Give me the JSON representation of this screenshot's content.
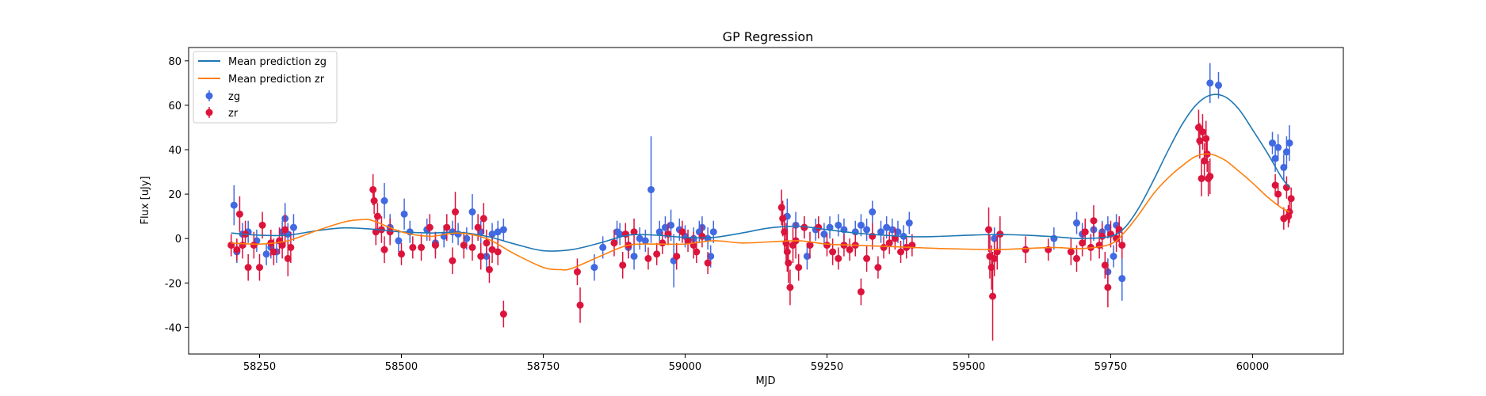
{
  "chart_data": {
    "type": "scatter",
    "title": "GP Regression",
    "xlabel": "MJD",
    "ylabel": "Flux [uJy]",
    "xlim": [
      58125,
      60160
    ],
    "ylim": [
      -52,
      86
    ],
    "xticks": [
      58250,
      58500,
      58750,
      59000,
      59250,
      59500,
      59750,
      60000
    ],
    "yticks": [
      -40,
      -20,
      0,
      20,
      40,
      60,
      80
    ],
    "legend_position": "upper-left",
    "colors": {
      "zg_points": "#4169e1",
      "zr_points": "#dc143c",
      "zg_line": "#1f77b4",
      "zr_line": "#ff7f0e"
    },
    "lines": [
      {
        "name": "Mean prediction zg",
        "x": [
          58200,
          58250,
          58300,
          58350,
          58400,
          58450,
          58500,
          58550,
          58600,
          58650,
          58700,
          58750,
          58800,
          58850,
          58900,
          58950,
          59000,
          59050,
          59100,
          59150,
          59200,
          59250,
          59300,
          59350,
          59400,
          59450,
          59500,
          59550,
          59600,
          59650,
          59700,
          59750,
          59775,
          59800,
          59825,
          59850,
          59875,
          59900,
          59925,
          59950,
          59975,
          60000,
          60025,
          60050,
          60065
        ],
        "y": [
          2.5,
          1.5,
          1.5,
          3.5,
          4.8,
          4.2,
          3.0,
          2.5,
          2.8,
          1.0,
          -2.5,
          -5.5,
          -5.0,
          -2.0,
          1.5,
          1.5,
          0.5,
          0.5,
          2.5,
          4.8,
          5.5,
          4.0,
          2.5,
          1.5,
          0.8,
          1.0,
          1.5,
          1.8,
          1.5,
          0.8,
          0.0,
          1.0,
          5.0,
          14.0,
          26.0,
          39.0,
          51.0,
          60.0,
          64.5,
          64.0,
          58.5,
          49.0,
          39.0,
          28.0,
          23.0
        ]
      },
      {
        "name": "Mean prediction zr",
        "x": [
          58200,
          58250,
          58300,
          58350,
          58400,
          58430,
          58450,
          58500,
          58550,
          58600,
          58650,
          58700,
          58750,
          58780,
          58800,
          58850,
          58900,
          58950,
          59000,
          59050,
          59100,
          59150,
          59200,
          59250,
          59300,
          59350,
          59400,
          59450,
          59500,
          59550,
          59600,
          59650,
          59700,
          59750,
          59775,
          59800,
          59825,
          59850,
          59875,
          59900,
          59925,
          59950,
          59975,
          60000,
          60025,
          60050,
          60065
        ],
        "y": [
          -2.0,
          -2.5,
          -1.0,
          3.5,
          7.5,
          8.5,
          8.0,
          3.0,
          1.0,
          2.5,
          0.0,
          -7.0,
          -13.0,
          -14.0,
          -13.5,
          -8.0,
          -3.0,
          -2.5,
          -2.5,
          -1.0,
          -2.0,
          -1.5,
          -1.0,
          -2.5,
          -3.0,
          -3.5,
          -4.0,
          -4.5,
          -4.8,
          -5.0,
          -4.5,
          -4.0,
          -4.5,
          -2.5,
          3.0,
          11.0,
          20.0,
          27.0,
          32.5,
          37.0,
          38.0,
          35.5,
          30.5,
          25.0,
          19.0,
          14.0,
          12.0
        ]
      }
    ],
    "series": [
      {
        "name": "zg",
        "points": [
          [
            58205,
            15,
            9
          ],
          [
            58210,
            -6,
            5
          ],
          [
            58220,
            2,
            5
          ],
          [
            58230,
            3,
            5
          ],
          [
            58245,
            -1,
            5
          ],
          [
            58262,
            -7,
            5
          ],
          [
            58270,
            -4,
            5
          ],
          [
            58280,
            -6,
            5
          ],
          [
            58290,
            3,
            5
          ],
          [
            58295,
            9,
            7
          ],
          [
            58300,
            2,
            5
          ],
          [
            58310,
            5,
            6
          ],
          [
            58470,
            17,
            8
          ],
          [
            58480,
            5,
            6
          ],
          [
            58495,
            -1,
            5
          ],
          [
            58505,
            11,
            7
          ],
          [
            58515,
            3,
            5
          ],
          [
            58545,
            4,
            5
          ],
          [
            58560,
            -2,
            5
          ],
          [
            58575,
            1,
            5
          ],
          [
            58590,
            3,
            5
          ],
          [
            58600,
            2,
            5
          ],
          [
            58615,
            0,
            5
          ],
          [
            58625,
            12,
            8
          ],
          [
            58640,
            3,
            5
          ],
          [
            58650,
            -8,
            6
          ],
          [
            58660,
            2,
            5
          ],
          [
            58670,
            3,
            5
          ],
          [
            58680,
            4,
            5
          ],
          [
            58840,
            -13,
            6
          ],
          [
            58855,
            -4,
            5
          ],
          [
            58880,
            3,
            5
          ],
          [
            58885,
            2,
            5
          ],
          [
            58900,
            -4,
            5
          ],
          [
            58910,
            -8,
            6
          ],
          [
            58920,
            0,
            5
          ],
          [
            58930,
            -1,
            5
          ],
          [
            58940,
            22,
            24
          ],
          [
            58955,
            3,
            5
          ],
          [
            58965,
            5,
            5
          ],
          [
            58975,
            6,
            7
          ],
          [
            58980,
            -10,
            12
          ],
          [
            58990,
            4,
            5
          ],
          [
            59000,
            1,
            5
          ],
          [
            59015,
            0,
            5
          ],
          [
            59025,
            3,
            5
          ],
          [
            59030,
            5,
            5
          ],
          [
            59040,
            0,
            5
          ],
          [
            59045,
            -8,
            5
          ],
          [
            59050,
            3,
            5
          ],
          [
            59180,
            10,
            8
          ],
          [
            59195,
            6,
            6
          ],
          [
            59210,
            5,
            5
          ],
          [
            59215,
            -8,
            6
          ],
          [
            59230,
            4,
            5
          ],
          [
            59245,
            2,
            5
          ],
          [
            59255,
            5,
            5
          ],
          [
            59270,
            6,
            5
          ],
          [
            59280,
            4,
            5
          ],
          [
            59300,
            3,
            5
          ],
          [
            59310,
            6,
            5
          ],
          [
            59320,
            4,
            5
          ],
          [
            59330,
            12,
            5
          ],
          [
            59345,
            3,
            5
          ],
          [
            59355,
            5,
            5
          ],
          [
            59365,
            4,
            5
          ],
          [
            59375,
            3,
            5
          ],
          [
            59385,
            1,
            5
          ],
          [
            59395,
            7,
            5
          ],
          [
            59545,
            0,
            5
          ],
          [
            59650,
            0,
            5
          ],
          [
            59690,
            7,
            5
          ],
          [
            59700,
            2,
            5
          ],
          [
            59720,
            4,
            5
          ],
          [
            59735,
            3,
            5
          ],
          [
            59745,
            5,
            5
          ],
          [
            59755,
            -8,
            5
          ],
          [
            59760,
            6,
            5
          ],
          [
            59770,
            -18,
            10
          ],
          [
            59745,
            -15,
            6
          ],
          [
            59925,
            70,
            9
          ],
          [
            59940,
            69,
            6
          ],
          [
            60035,
            43,
            5
          ],
          [
            60040,
            36,
            6
          ],
          [
            60045,
            41,
            6
          ],
          [
            60055,
            32,
            6
          ],
          [
            60060,
            39,
            7
          ],
          [
            60065,
            43,
            8
          ]
        ]
      },
      {
        "name": "zr",
        "points": [
          [
            58200,
            -3,
            5
          ],
          [
            58210,
            -5,
            5
          ],
          [
            58215,
            11,
            8
          ],
          [
            58220,
            -3,
            6
          ],
          [
            58225,
            2,
            6
          ],
          [
            58230,
            -13,
            6
          ],
          [
            58240,
            -3,
            6
          ],
          [
            58250,
            -13,
            6
          ],
          [
            58255,
            6,
            6
          ],
          [
            58270,
            -2,
            6
          ],
          [
            58275,
            -6,
            6
          ],
          [
            58285,
            -1,
            6
          ],
          [
            58290,
            -3,
            6
          ],
          [
            58295,
            4,
            7
          ],
          [
            58300,
            -9,
            8
          ],
          [
            58305,
            -4,
            7
          ],
          [
            58450,
            22,
            7
          ],
          [
            58452,
            17,
            6
          ],
          [
            58455,
            3,
            6
          ],
          [
            58458,
            10,
            6
          ],
          [
            58465,
            4,
            6
          ],
          [
            58470,
            -5,
            6
          ],
          [
            58480,
            3,
            6
          ],
          [
            58500,
            -7,
            5
          ],
          [
            58520,
            -4,
            5
          ],
          [
            58535,
            -4,
            6
          ],
          [
            58550,
            5,
            6
          ],
          [
            58560,
            -3,
            6
          ],
          [
            58580,
            5,
            6
          ],
          [
            58590,
            -10,
            6
          ],
          [
            58595,
            12,
            9
          ],
          [
            58610,
            -3,
            6
          ],
          [
            58625,
            -4,
            6
          ],
          [
            58635,
            5,
            6
          ],
          [
            58645,
            9,
            7
          ],
          [
            58650,
            -2,
            6
          ],
          [
            58655,
            -14,
            6
          ],
          [
            58660,
            -5,
            6
          ],
          [
            58670,
            -6,
            6
          ],
          [
            58680,
            -34,
            6
          ],
          [
            58640,
            -8,
            6
          ],
          [
            58810,
            -15,
            6
          ],
          [
            58815,
            -30,
            8
          ],
          [
            58875,
            -2,
            6
          ],
          [
            58890,
            -12,
            6
          ],
          [
            58895,
            2,
            5
          ],
          [
            58900,
            -3,
            6
          ],
          [
            58910,
            3,
            6
          ],
          [
            58935,
            -9,
            5
          ],
          [
            58950,
            -7,
            5
          ],
          [
            58960,
            -2,
            5
          ],
          [
            58970,
            2,
            5
          ],
          [
            58985,
            -8,
            6
          ],
          [
            58995,
            3,
            5
          ],
          [
            59005,
            -1,
            5
          ],
          [
            59015,
            -3,
            6
          ],
          [
            59020,
            -6,
            5
          ],
          [
            59030,
            1,
            5
          ],
          [
            59040,
            -11,
            5
          ],
          [
            59170,
            14,
            8
          ],
          [
            59172,
            9,
            8
          ],
          [
            59175,
            3,
            8
          ],
          [
            59178,
            -2,
            9
          ],
          [
            59180,
            -6,
            9
          ],
          [
            59182,
            -11,
            9
          ],
          [
            59185,
            -22,
            8
          ],
          [
            59190,
            -3,
            8
          ],
          [
            59195,
            -1,
            8
          ],
          [
            59200,
            -13,
            6
          ],
          [
            59210,
            5,
            5
          ],
          [
            59220,
            -3,
            6
          ],
          [
            59235,
            5,
            5
          ],
          [
            59250,
            -3,
            5
          ],
          [
            59260,
            -6,
            6
          ],
          [
            59270,
            -9,
            5
          ],
          [
            59280,
            -3,
            5
          ],
          [
            59290,
            -5,
            5
          ],
          [
            59300,
            -3,
            5
          ],
          [
            59310,
            -24,
            6
          ],
          [
            59320,
            -9,
            6
          ],
          [
            59330,
            1,
            6
          ],
          [
            59340,
            -13,
            5
          ],
          [
            59350,
            -4,
            5
          ],
          [
            59360,
            -2,
            5
          ],
          [
            59370,
            0,
            5
          ],
          [
            59380,
            -6,
            5
          ],
          [
            59390,
            -4,
            5
          ],
          [
            59400,
            -3,
            5
          ],
          [
            59535,
            4,
            10
          ],
          [
            59537,
            -8,
            10
          ],
          [
            59540,
            -13,
            10
          ],
          [
            59542,
            -26,
            20
          ],
          [
            59545,
            -9,
            8
          ],
          [
            59550,
            -6,
            8
          ],
          [
            59555,
            2,
            8
          ],
          [
            59600,
            -5,
            6
          ],
          [
            59640,
            -5,
            5
          ],
          [
            59680,
            -6,
            6
          ],
          [
            59690,
            -9,
            6
          ],
          [
            59700,
            -2,
            6
          ],
          [
            59705,
            3,
            6
          ],
          [
            59715,
            -4,
            6
          ],
          [
            59720,
            8,
            7
          ],
          [
            59730,
            -3,
            6
          ],
          [
            59735,
            1,
            6
          ],
          [
            59740,
            -12,
            6
          ],
          [
            59745,
            -22,
            9
          ],
          [
            59750,
            2,
            6
          ],
          [
            59760,
            0,
            6
          ],
          [
            59765,
            4,
            6
          ],
          [
            59770,
            -3,
            6
          ],
          [
            59905,
            50,
            8
          ],
          [
            59907,
            44,
            8
          ],
          [
            59910,
            27,
            8
          ],
          [
            59912,
            48,
            8
          ],
          [
            59915,
            35,
            8
          ],
          [
            59918,
            45,
            8
          ],
          [
            59920,
            38,
            8
          ],
          [
            59922,
            27,
            8
          ],
          [
            59925,
            28,
            8
          ],
          [
            60040,
            24,
            5
          ],
          [
            60045,
            20,
            5
          ],
          [
            60055,
            9,
            5
          ],
          [
            60060,
            23,
            5
          ],
          [
            60063,
            10,
            5
          ],
          [
            60065,
            12,
            5
          ],
          [
            60068,
            18,
            5
          ]
        ]
      }
    ]
  }
}
